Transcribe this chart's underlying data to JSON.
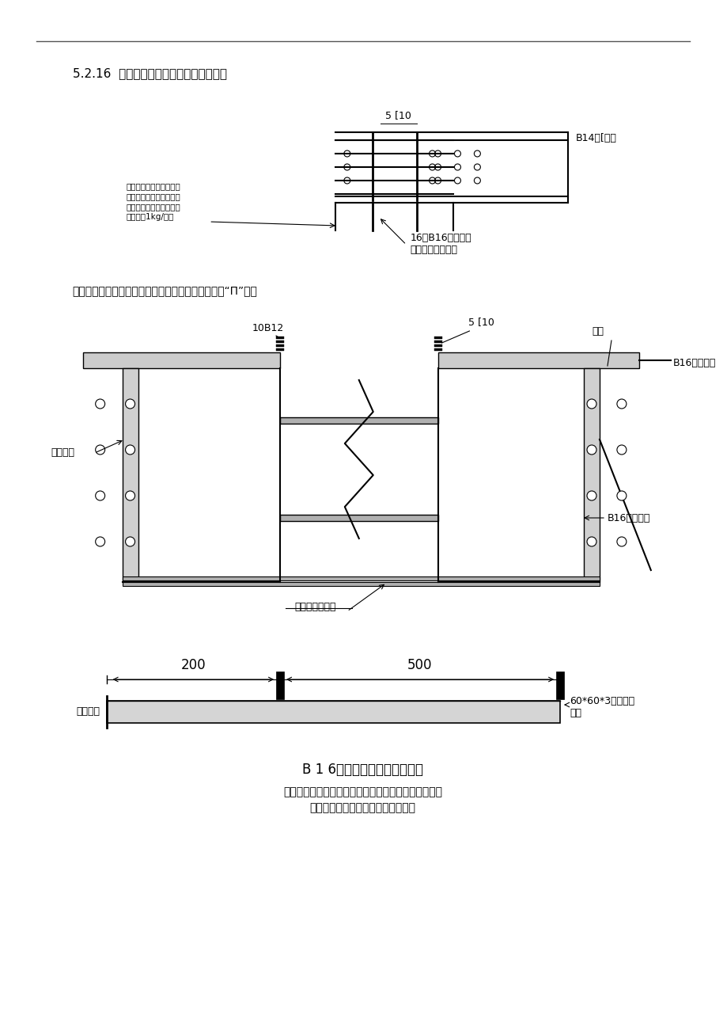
{
  "bg_color": "#ffffff",
  "line_color": "#000000",
  "gray_color": "#808080",
  "title_top": "5.2.16  电梯坑、集水坑内筱模防位移措施",
  "label_16root": "16根B16水平支撑",
  "label_support_pos": "支于筱模上、下口",
  "label_b14": "B14与[焊固",
  "label_5c10_top": "5 [10",
  "label_note_top_1": "抗浮拉筋与槽锂焊固后，",
  "label_note_top_2": "应在上部堆放整扎模板或",
  "label_note_top_3": "长度合适的繁筍锂管，重",
  "label_note_top_4": "量不少于1kg/单坑",
  "label_elev": "电梯井、集水井模抗移位支撑筋，并有止水片及防浮“П”加筋",
  "label_10b12": "10B12",
  "label_5c10_mid": "5 [10",
  "label_welded": "焊固",
  "label_b16_top": "B16水平支撑",
  "label_boxform": "筱式坑模",
  "label_b16_bot": "B16水平支撑",
  "label_weld_bot": "与底下排筋焊固",
  "label_200": "200",
  "label_500": "500",
  "label_60x60": "60*60*3止水铁片",
  "label_manhan": "满焊",
  "label_topform": "顶模板端",
  "diagram_title": "B 1 6止水锂筋水平支撑示意图",
  "note_bottom_1": "一端顶支于模板，一端支于直壁围护墙或放坡护壁上，",
  "note_bottom_2": "支撑杆应与底板筋焊固防止位移脉落"
}
